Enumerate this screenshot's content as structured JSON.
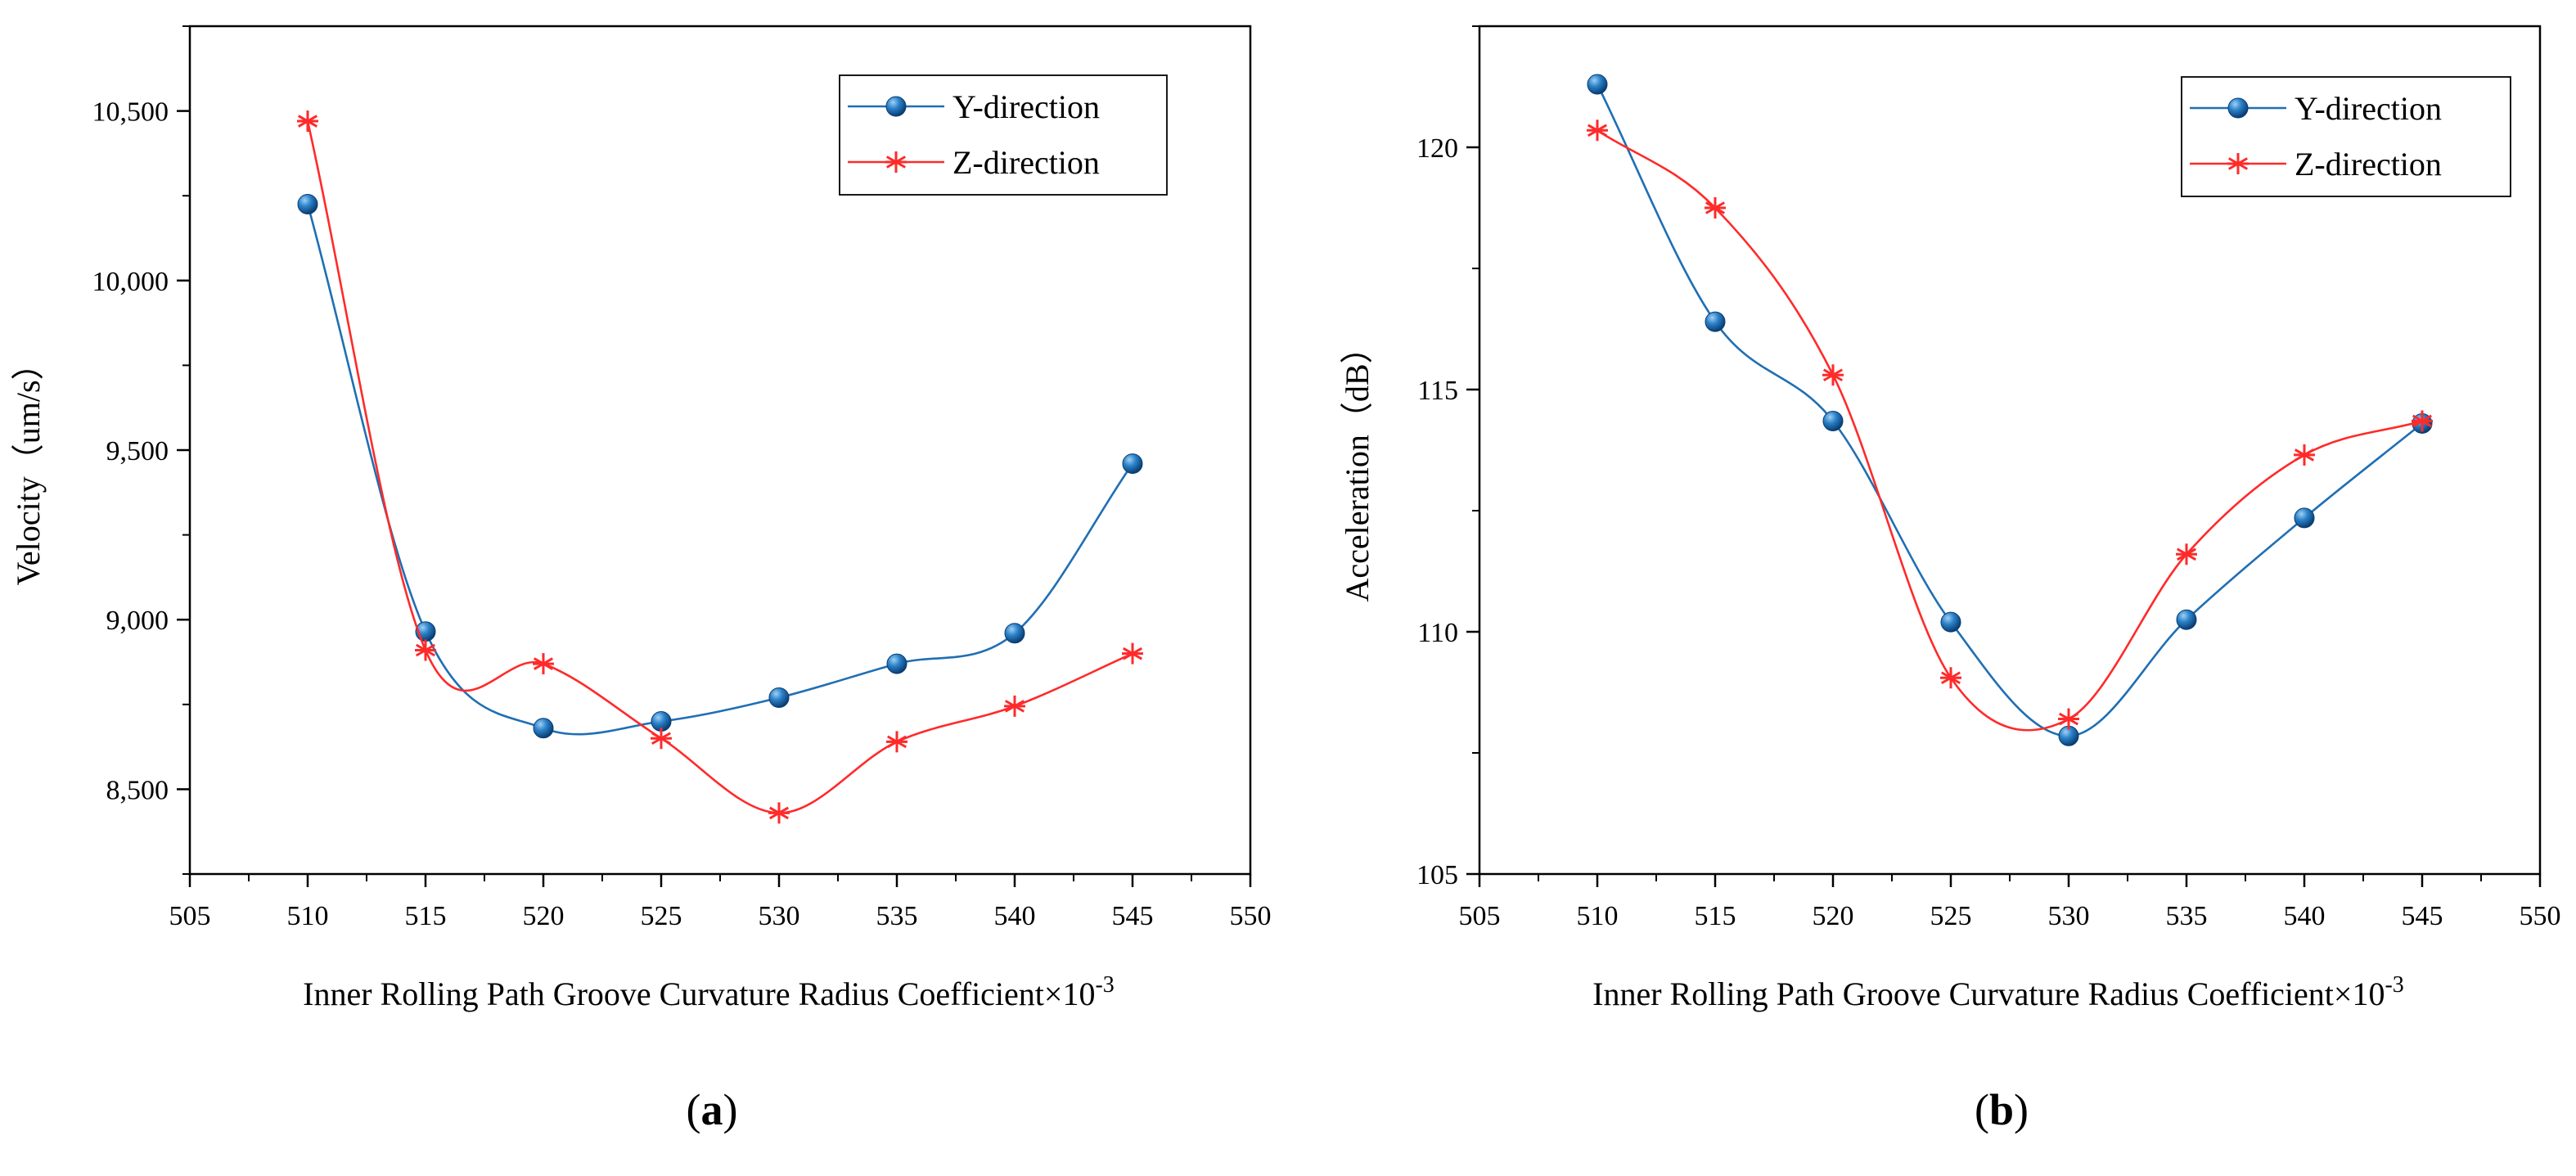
{
  "colors": {
    "y_series": "#1f6fb4",
    "z_series": "#ff2a2a",
    "axis": "#000000"
  },
  "chart_data": [
    {
      "type": "line",
      "panel_label": "(a)",
      "panel_letter": "a",
      "xlabel": "Inner Rolling Path Groove Curvature Radius Coefficient×10",
      "xlabel_exponent": "-3",
      "ylabel": "Velocity（um/s）",
      "xlim": [
        505,
        550
      ],
      "ylim": [
        8250,
        10750
      ],
      "x_ticks": [
        505,
        510,
        515,
        520,
        525,
        530,
        535,
        540,
        545,
        550
      ],
      "y_ticks": [
        8500,
        9000,
        9500,
        10000,
        10500
      ],
      "y_tick_labels": [
        "8,500",
        "9,000",
        "9,500",
        "10,000",
        "10,500"
      ],
      "x": [
        510,
        515,
        520,
        525,
        530,
        535,
        540,
        545
      ],
      "legend_position": "top-right",
      "series": [
        {
          "name": "Y-direction",
          "marker": "circle",
          "values": [
            10225,
            8965,
            8680,
            8700,
            8770,
            8870,
            8960,
            9460
          ]
        },
        {
          "name": "Z-direction",
          "marker": "asterisk",
          "values": [
            10470,
            8910,
            8870,
            8650,
            8430,
            8640,
            8745,
            8900
          ]
        }
      ]
    },
    {
      "type": "line",
      "panel_label": "(b)",
      "panel_letter": "b",
      "xlabel": "Inner Rolling Path Groove Curvature Radius Coefficient×10",
      "xlabel_exponent": "-3",
      "ylabel": "Acceleration（dB）",
      "xlim": [
        505,
        550
      ],
      "ylim": [
        105,
        122.5
      ],
      "x_ticks": [
        505,
        510,
        515,
        520,
        525,
        530,
        535,
        540,
        545,
        550
      ],
      "y_ticks": [
        105,
        110,
        115,
        120
      ],
      "y_tick_labels": [
        "105",
        "110",
        "115",
        "120"
      ],
      "x": [
        510,
        515,
        520,
        525,
        530,
        535,
        540,
        545
      ],
      "legend_position": "top-right",
      "series": [
        {
          "name": "Y-direction",
          "marker": "circle",
          "values": [
            121.3,
            116.4,
            114.35,
            110.2,
            107.85,
            110.25,
            112.35,
            114.3
          ]
        },
        {
          "name": "Z-direction",
          "marker": "asterisk",
          "values": [
            120.35,
            118.75,
            115.3,
            109.05,
            108.2,
            111.6,
            113.65,
            114.35
          ]
        }
      ]
    }
  ]
}
